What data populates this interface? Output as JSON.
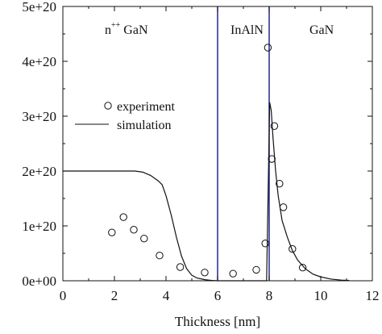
{
  "chart_data": {
    "type": "scatter",
    "title": "",
    "xlabel": "Thickness [nm]",
    "ylabel": "",
    "xlim": [
      0,
      12
    ],
    "ylim": [
      0,
      5e+20
    ],
    "x_ticks": [
      0,
      2,
      4,
      6,
      8,
      10,
      12
    ],
    "x_tick_labels": [
      "0",
      "2",
      "4",
      "6",
      "8",
      "10",
      "12"
    ],
    "y_ticks": [
      0,
      1e+20,
      2e+20,
      3e+20,
      4e+20,
      5e+20
    ],
    "y_tick_labels": [
      "0e+00",
      "1e+20",
      "2e+20",
      "3e+20",
      "4e+20",
      "5e+20"
    ],
    "grid": false,
    "legend_position": "middle-left",
    "legend": {
      "experiment_label": "experiment",
      "simulation_label": "simulation"
    },
    "region_labels": {
      "left_base": "n",
      "left_sup": "++",
      "left_rest": " GaN",
      "middle": "InAlN",
      "right": "GaN"
    },
    "vertical_lines": [
      6,
      8
    ],
    "vertical_line_color": "#1f2a8a",
    "series": [
      {
        "name": "experiment",
        "marker": "open-circle",
        "x": [
          1.9,
          2.35,
          2.75,
          3.15,
          3.75,
          4.55,
          5.5,
          6.6,
          7.5,
          7.85,
          7.95,
          8.1,
          8.2,
          8.4,
          8.55,
          8.9,
          9.3
        ],
        "y": [
          8.8e+19,
          1.16e+20,
          9.3e+19,
          7.7e+19,
          4.6e+19,
          2.5e+19,
          1.5e+19,
          1.3e+19,
          2e+19,
          6.8e+19,
          4.25e+20,
          2.22e+20,
          2.82e+20,
          1.77e+20,
          1.34e+20,
          5.8e+19,
          2.4e+19
        ]
      },
      {
        "name": "simulation",
        "line": "solid",
        "x": [
          0,
          1.0,
          2.0,
          2.8,
          3.1,
          3.4,
          3.7,
          3.85,
          4.0,
          4.2,
          4.4,
          4.6,
          4.8,
          5.0,
          5.2,
          5.5,
          5.8,
          6.0,
          7.9,
          8.02,
          8.08,
          8.15,
          8.25,
          8.35,
          8.5,
          8.7,
          8.9,
          9.1,
          9.4,
          9.7,
          10.0,
          10.4,
          10.8,
          11.1
        ],
        "y": [
          2e+20,
          2e+20,
          2e+20,
          2e+20,
          1.98e+20,
          1.92e+20,
          1.82e+20,
          1.75e+20,
          1.55e+20,
          1.2e+20,
          8e+19,
          4.5e+19,
          2.2e+19,
          1e+19,
          5e+18,
          2e+18,
          5e+17,
          0.0,
          0.0,
          3.25e+20,
          3.1e+20,
          2.6e+20,
          2e+20,
          1.55e+20,
          1.1e+20,
          8e+19,
          5.5e+19,
          3.8e+19,
          2.2e+19,
          1.2e+19,
          7e+18,
          3e+18,
          1.2e+18,
          5e+17
        ]
      }
    ],
    "colors": {
      "axis": "#111111",
      "data": "#111111",
      "background": "#ffffff"
    }
  }
}
